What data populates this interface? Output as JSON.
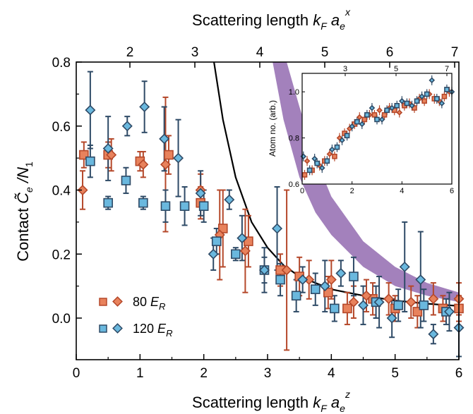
{
  "chart_data": {
    "type": "scatter",
    "top_axis_label": "Scattering length  k_F a_e^x",
    "top_ticks": [
      "2",
      "3",
      "4",
      "5",
      "6",
      "7"
    ],
    "xlabel": "Scattering length  k_F a_e^z",
    "ylabel": "Contact  C̃_e /N_1",
    "xlim": [
      0,
      6
    ],
    "ylim": [
      -0.13,
      0.8
    ],
    "xticks": [
      "0",
      "1",
      "2",
      "3",
      "4",
      "5",
      "6"
    ],
    "yticks": [
      "0.0",
      "0.2",
      "0.4",
      "0.6",
      "0.8"
    ],
    "colors": {
      "orange": "#e8825c",
      "orange_edge": "#b5482a",
      "blue": "#6ab8de",
      "blue_edge": "#2e4a66",
      "band": "#9e7ab8",
      "curve": "#000000"
    },
    "legend": {
      "position": "lower-left",
      "entries": [
        {
          "text": "80 E_R",
          "color": "orange"
        },
        {
          "text": "120 E_R",
          "color": "blue"
        }
      ]
    },
    "series": [
      {
        "legend": "80 E_R",
        "marker": "square",
        "color": "orange",
        "points": [
          [
            0.12,
            0.51,
            0.04
          ],
          [
            0.5,
            0.51,
            0.04
          ],
          [
            1.0,
            0.49,
            0.03
          ],
          [
            1.45,
            0.51,
            0.06
          ],
          [
            1.95,
            0.36,
            0.05
          ],
          [
            2.3,
            0.28,
            0.12
          ],
          [
            2.7,
            0.24,
            0.08
          ],
          [
            3.2,
            0.15,
            0.05
          ],
          [
            3.5,
            0.13,
            0.06
          ],
          [
            3.95,
            0.08,
            0.05
          ],
          [
            4.25,
            0.03,
            0.05
          ],
          [
            4.65,
            0.06,
            0.05
          ],
          [
            5.0,
            0.03,
            0.04
          ],
          [
            5.35,
            0.02,
            0.05
          ],
          [
            5.75,
            0.03,
            0.04
          ],
          [
            6.0,
            0.03,
            0.04
          ]
        ]
      },
      {
        "legend": "80 E_R",
        "marker": "diamond",
        "color": "orange",
        "points": [
          [
            0.1,
            0.4,
            0.06
          ],
          [
            0.55,
            0.51,
            0.05
          ],
          [
            1.05,
            0.48,
            0.04
          ],
          [
            1.4,
            0.48,
            0.21
          ],
          [
            1.95,
            0.4,
            0.05
          ],
          [
            2.25,
            0.26,
            0.14
          ],
          [
            2.65,
            0.21,
            0.13
          ],
          [
            3.3,
            0.15,
            0.25
          ],
          [
            3.65,
            0.12,
            0.06
          ],
          [
            4.0,
            0.12,
            0.06
          ],
          [
            4.35,
            0.05,
            0.05
          ],
          [
            4.55,
            0.07,
            0.05
          ],
          [
            4.9,
            0.06,
            0.05
          ],
          [
            5.25,
            0.05,
            0.05
          ],
          [
            5.6,
            0.06,
            0.05
          ],
          [
            6.0,
            0.06,
            0.05
          ]
        ]
      },
      {
        "legend": "120 E_R",
        "marker": "square",
        "color": "blue",
        "points": [
          [
            0.22,
            0.49,
            0.05
          ],
          [
            0.5,
            0.36,
            0.02
          ],
          [
            0.78,
            0.43,
            0.04
          ],
          [
            1.05,
            0.36,
            0.02
          ],
          [
            1.4,
            0.35,
            0.05
          ],
          [
            1.7,
            0.35,
            0.06
          ],
          [
            2.0,
            0.35,
            0.05
          ],
          [
            2.2,
            0.24,
            0.04
          ],
          [
            2.5,
            0.2,
            0.02
          ],
          [
            2.95,
            0.15,
            0.04
          ],
          [
            3.2,
            0.12,
            0.05
          ],
          [
            3.45,
            0.07,
            0.05
          ],
          [
            3.75,
            0.09,
            0.05
          ],
          [
            4.05,
            0.03,
            0.04
          ],
          [
            4.35,
            0.13,
            0.06
          ],
          [
            4.7,
            0.05,
            0.05
          ],
          [
            5.05,
            0.04,
            0.05
          ],
          [
            5.45,
            0.04,
            0.05
          ],
          [
            5.8,
            0.02,
            0.04
          ]
        ]
      },
      {
        "legend": "120 E_R",
        "marker": "diamond",
        "color": "blue",
        "points": [
          [
            0.22,
            0.65,
            0.12
          ],
          [
            0.5,
            0.53,
            0.1
          ],
          [
            0.8,
            0.6,
            0.03
          ],
          [
            1.07,
            0.66,
            0.08
          ],
          [
            1.38,
            0.56,
            0.1
          ],
          [
            1.6,
            0.5,
            0.12
          ],
          [
            1.95,
            0.39,
            0.07
          ],
          [
            2.15,
            0.2,
            0.05
          ],
          [
            2.4,
            0.37,
            0.03
          ],
          [
            2.6,
            0.25,
            0.07
          ],
          [
            2.95,
            0.15,
            0.07
          ],
          [
            3.15,
            0.28,
            0.13
          ],
          [
            3.55,
            0.12,
            0.04
          ],
          [
            3.9,
            0.1,
            0.08
          ],
          [
            4.15,
            0.14,
            0.04
          ],
          [
            4.5,
            0.04,
            0.06
          ],
          [
            4.75,
            0.05,
            0.08
          ],
          [
            4.95,
            0.0,
            0.06
          ],
          [
            5.15,
            0.16,
            0.14
          ],
          [
            5.4,
            0.12,
            0.15
          ],
          [
            5.6,
            -0.05,
            0.03
          ],
          [
            5.85,
            0.02,
            0.06
          ],
          [
            6.0,
            -0.03,
            0.09
          ]
        ]
      }
    ],
    "theory_curve": {
      "points": [
        [
          2.16,
          0.8
        ],
        [
          2.3,
          0.62
        ],
        [
          2.5,
          0.44
        ],
        [
          2.75,
          0.3
        ],
        [
          3.0,
          0.22
        ],
        [
          3.25,
          0.165
        ],
        [
          3.5,
          0.13
        ],
        [
          4.0,
          0.09
        ],
        [
          4.5,
          0.07
        ],
        [
          5.0,
          0.055
        ],
        [
          5.5,
          0.045
        ],
        [
          6.0,
          0.038
        ]
      ]
    },
    "theory_band": {
      "upper": [
        [
          3.3,
          0.8
        ],
        [
          3.5,
          0.66
        ],
        [
          3.75,
          0.5
        ],
        [
          4.0,
          0.38
        ],
        [
          4.5,
          0.24
        ],
        [
          5.0,
          0.16
        ],
        [
          5.5,
          0.11
        ],
        [
          6.0,
          0.08
        ]
      ],
      "lower": [
        [
          3.08,
          0.8
        ],
        [
          3.25,
          0.62
        ],
        [
          3.5,
          0.44
        ],
        [
          3.75,
          0.33
        ],
        [
          4.0,
          0.26
        ],
        [
          4.5,
          0.16
        ],
        [
          5.0,
          0.1
        ],
        [
          5.5,
          0.07
        ],
        [
          6.0,
          0.05
        ]
      ]
    },
    "inset": {
      "ylabel": "Atom no. (arb.)",
      "xlim": [
        0,
        6
      ],
      "ylim": [
        0.6,
        1.08
      ],
      "xticks": [
        "0",
        "2",
        "4",
        "6"
      ],
      "yticks": [
        "0.6",
        "0.8",
        "1.0"
      ],
      "top_ticks": [
        "3",
        "5",
        "7"
      ],
      "series": [
        {
          "marker": "square",
          "color": "orange",
          "points": [
            [
              0.1,
              0.64
            ],
            [
              0.4,
              0.66
            ],
            [
              0.9,
              0.7
            ],
            [
              1.3,
              0.72
            ],
            [
              1.7,
              0.82
            ],
            [
              2.1,
              0.86
            ],
            [
              2.5,
              0.88
            ],
            [
              2.9,
              0.9
            ],
            [
              3.3,
              0.9
            ],
            [
              3.7,
              0.92
            ],
            [
              4.1,
              0.94
            ],
            [
              4.5,
              0.93
            ],
            [
              4.9,
              0.96
            ],
            [
              5.3,
              0.97
            ],
            [
              5.7,
              0.98
            ]
          ]
        },
        {
          "marker": "diamond",
          "color": "orange",
          "points": [
            [
              0.2,
              0.7
            ],
            [
              0.7,
              0.68
            ],
            [
              1.1,
              0.73
            ],
            [
              1.5,
              0.8
            ],
            [
              1.9,
              0.84
            ],
            [
              2.3,
              0.89
            ],
            [
              2.7,
              0.9
            ],
            [
              3.1,
              0.92
            ],
            [
              3.5,
              0.93
            ],
            [
              3.9,
              0.91
            ],
            [
              4.3,
              0.95
            ],
            [
              4.7,
              0.97
            ],
            [
              5.1,
              0.99
            ],
            [
              5.5,
              0.96
            ],
            [
              5.9,
              1.0
            ]
          ]
        },
        {
          "marker": "square",
          "color": "blue",
          "points": [
            [
              0.3,
              0.66
            ],
            [
              0.6,
              0.69
            ],
            [
              1.0,
              0.7
            ],
            [
              1.4,
              0.76
            ],
            [
              1.8,
              0.81
            ],
            [
              2.2,
              0.87
            ],
            [
              2.6,
              0.9
            ],
            [
              3.0,
              0.88
            ],
            [
              3.4,
              0.92
            ],
            [
              3.8,
              0.94
            ],
            [
              4.2,
              0.95
            ],
            [
              4.6,
              0.96
            ],
            [
              5.0,
              0.99
            ],
            [
              5.4,
              0.97
            ],
            [
              5.8,
              1.01
            ]
          ]
        },
        {
          "marker": "diamond",
          "color": "blue",
          "points": [
            [
              0.05,
              0.72
            ],
            [
              0.5,
              0.71
            ],
            [
              0.8,
              0.67
            ],
            [
              1.2,
              0.75
            ],
            [
              1.6,
              0.79
            ],
            [
              2.0,
              0.85
            ],
            [
              2.4,
              0.86
            ],
            [
              2.8,
              0.93
            ],
            [
              3.2,
              0.88
            ],
            [
              3.6,
              0.93
            ],
            [
              4.0,
              0.96
            ],
            [
              4.4,
              0.94
            ],
            [
              4.8,
              0.98
            ],
            [
              5.2,
              1.05
            ],
            [
              5.6,
              0.95
            ],
            [
              6.0,
              1.0
            ]
          ]
        }
      ]
    }
  }
}
